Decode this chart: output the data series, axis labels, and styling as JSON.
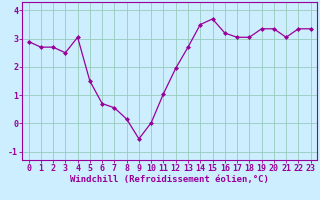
{
  "x": [
    0,
    1,
    2,
    3,
    4,
    5,
    6,
    7,
    8,
    9,
    10,
    11,
    12,
    13,
    14,
    15,
    16,
    17,
    18,
    19,
    20,
    21,
    22,
    23
  ],
  "y": [
    2.9,
    2.7,
    2.7,
    2.5,
    3.05,
    1.5,
    0.7,
    0.55,
    0.15,
    -0.55,
    0.02,
    1.05,
    1.95,
    2.7,
    3.5,
    3.7,
    3.2,
    3.05,
    3.05,
    3.35,
    3.35,
    3.05,
    3.35,
    3.35
  ],
  "ylim": [
    -1.3,
    4.3
  ],
  "xlim": [
    -0.5,
    23.5
  ],
  "yticks": [
    -1,
    0,
    1,
    2,
    3,
    4
  ],
  "xticks": [
    0,
    1,
    2,
    3,
    4,
    5,
    6,
    7,
    8,
    9,
    10,
    11,
    12,
    13,
    14,
    15,
    16,
    17,
    18,
    19,
    20,
    21,
    22,
    23
  ],
  "line_color": "#990099",
  "marker_color": "#990099",
  "bg_color": "#cceeff",
  "grid_color": "#99ccbb",
  "xlabel": "Windchill (Refroidissement éolien,°C)",
  "xlabel_fontsize": 6.5,
  "tick_fontsize": 6.0,
  "title": ""
}
